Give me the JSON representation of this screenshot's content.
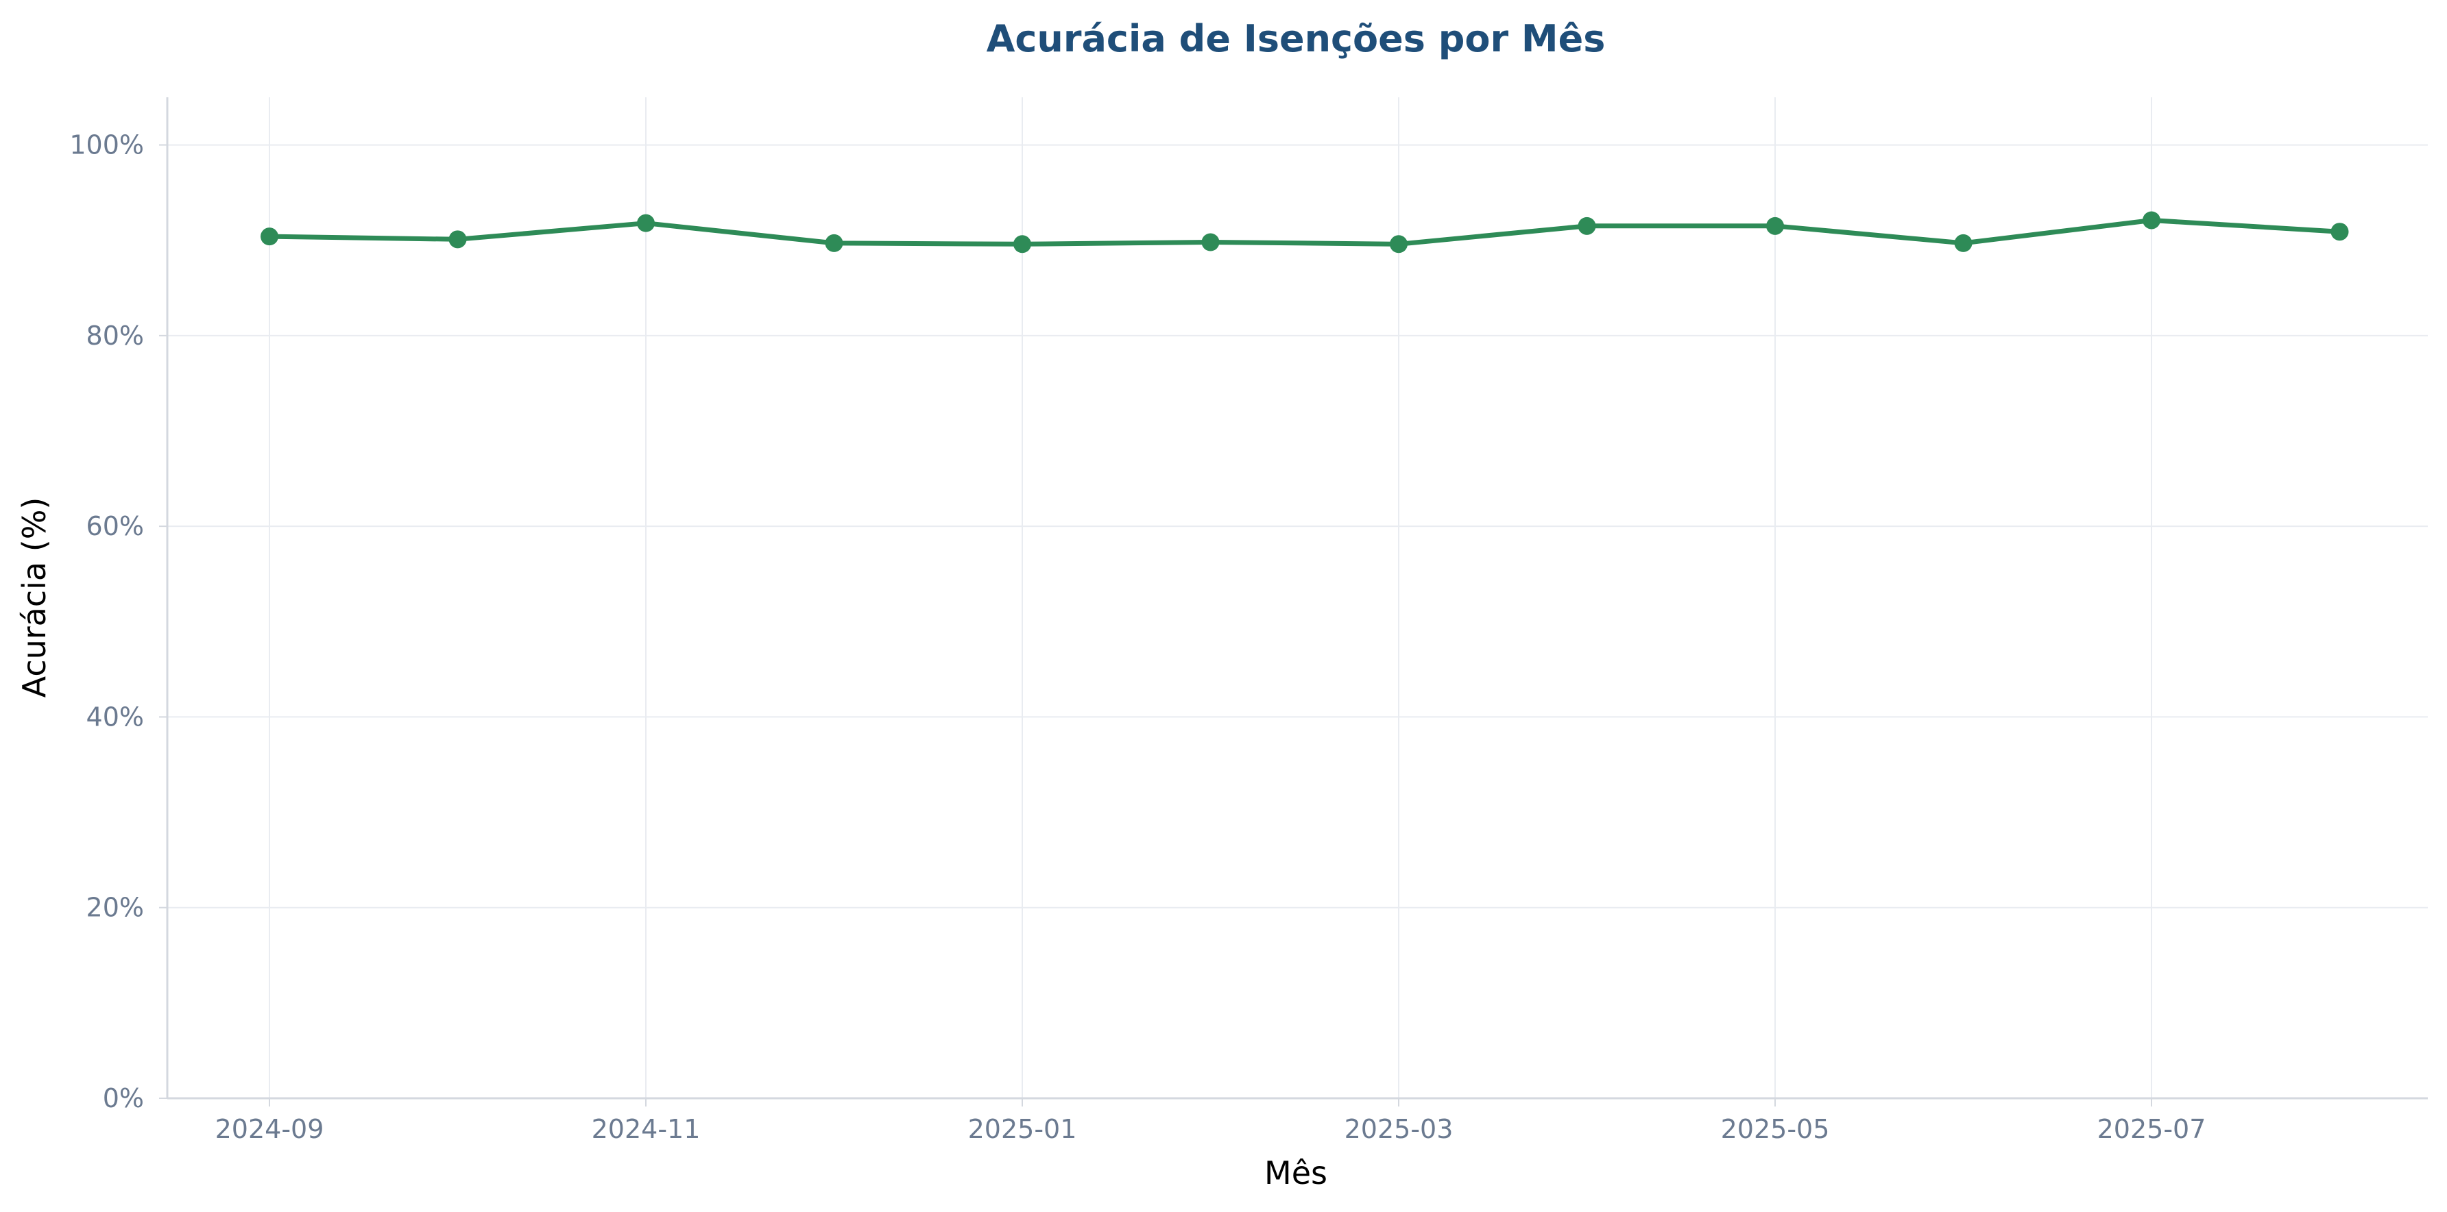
{
  "chart_data": {
    "type": "line",
    "title": "Acurácia de Isenções por Mês",
    "xlabel": "Mês",
    "ylabel": "Acurácia (%)",
    "x": [
      "2024-09",
      "2024-10",
      "2024-11",
      "2024-12",
      "2025-01",
      "2025-02",
      "2025-03",
      "2025-04",
      "2025-05",
      "2025-06",
      "2025-07",
      "2025-08"
    ],
    "x_ticks": [
      "2024-09",
      "2024-11",
      "2025-01",
      "2025-03",
      "2025-05",
      "2025-07"
    ],
    "y_ticks": [
      0,
      20,
      40,
      60,
      80,
      100
    ],
    "y_tick_format": "{v}%",
    "ylim": [
      0,
      105
    ],
    "grid": true,
    "series": [
      {
        "values": [
          90.4,
          90.1,
          91.8,
          89.7,
          89.6,
          89.8,
          89.6,
          91.5,
          91.5,
          89.7,
          92.1,
          90.9
        ]
      }
    ],
    "line_color": "#2e8b57"
  }
}
